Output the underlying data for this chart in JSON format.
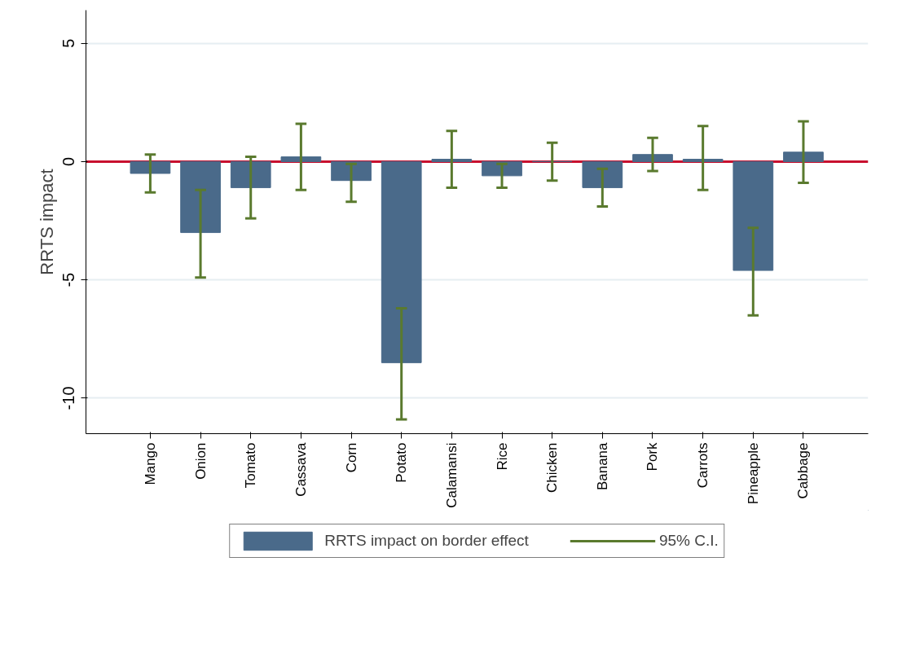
{
  "chart_data": {
    "type": "bar",
    "ylabel": "RRTS impact",
    "categories": [
      "Mango",
      "Onion",
      "Tomato",
      "Cassava",
      "Corn",
      "Potato",
      "Calamansi",
      "Rice",
      "Chicken",
      "Banana",
      "Pork",
      "Carrots",
      "Pineapple",
      "Cabbage"
    ],
    "series": [
      {
        "name": "RRTS impact on border effect",
        "color": "#4a6a8a",
        "values": [
          -0.5,
          -3.0,
          -1.1,
          0.2,
          -0.8,
          -8.5,
          0.1,
          -0.6,
          0.0,
          -1.1,
          0.3,
          0.1,
          -4.6,
          0.4
        ],
        "errors": [
          [
            -1.3,
            0.3
          ],
          [
            -4.9,
            -1.2
          ],
          [
            -2.4,
            0.2
          ],
          [
            -1.2,
            1.6
          ],
          [
            -1.7,
            -0.1
          ],
          [
            -10.9,
            -6.2
          ],
          [
            -1.1,
            1.3
          ],
          [
            -1.1,
            -0.1
          ],
          [
            -0.8,
            0.8
          ],
          [
            -1.9,
            -0.3
          ],
          [
            -0.4,
            1.0
          ],
          [
            -1.2,
            1.5
          ],
          [
            -6.5,
            -2.8
          ],
          [
            -0.9,
            1.7
          ]
        ]
      }
    ],
    "annotations": [
      "95% C.I."
    ],
    "ylim": [
      -11.5,
      6.4
    ],
    "yticks": [
      -10,
      -5,
      0,
      5
    ],
    "grid": "y",
    "legend": "bottom",
    "ref_lines": [
      {
        "axis": "y",
        "value": 0,
        "color": "#c8102e"
      }
    ]
  }
}
